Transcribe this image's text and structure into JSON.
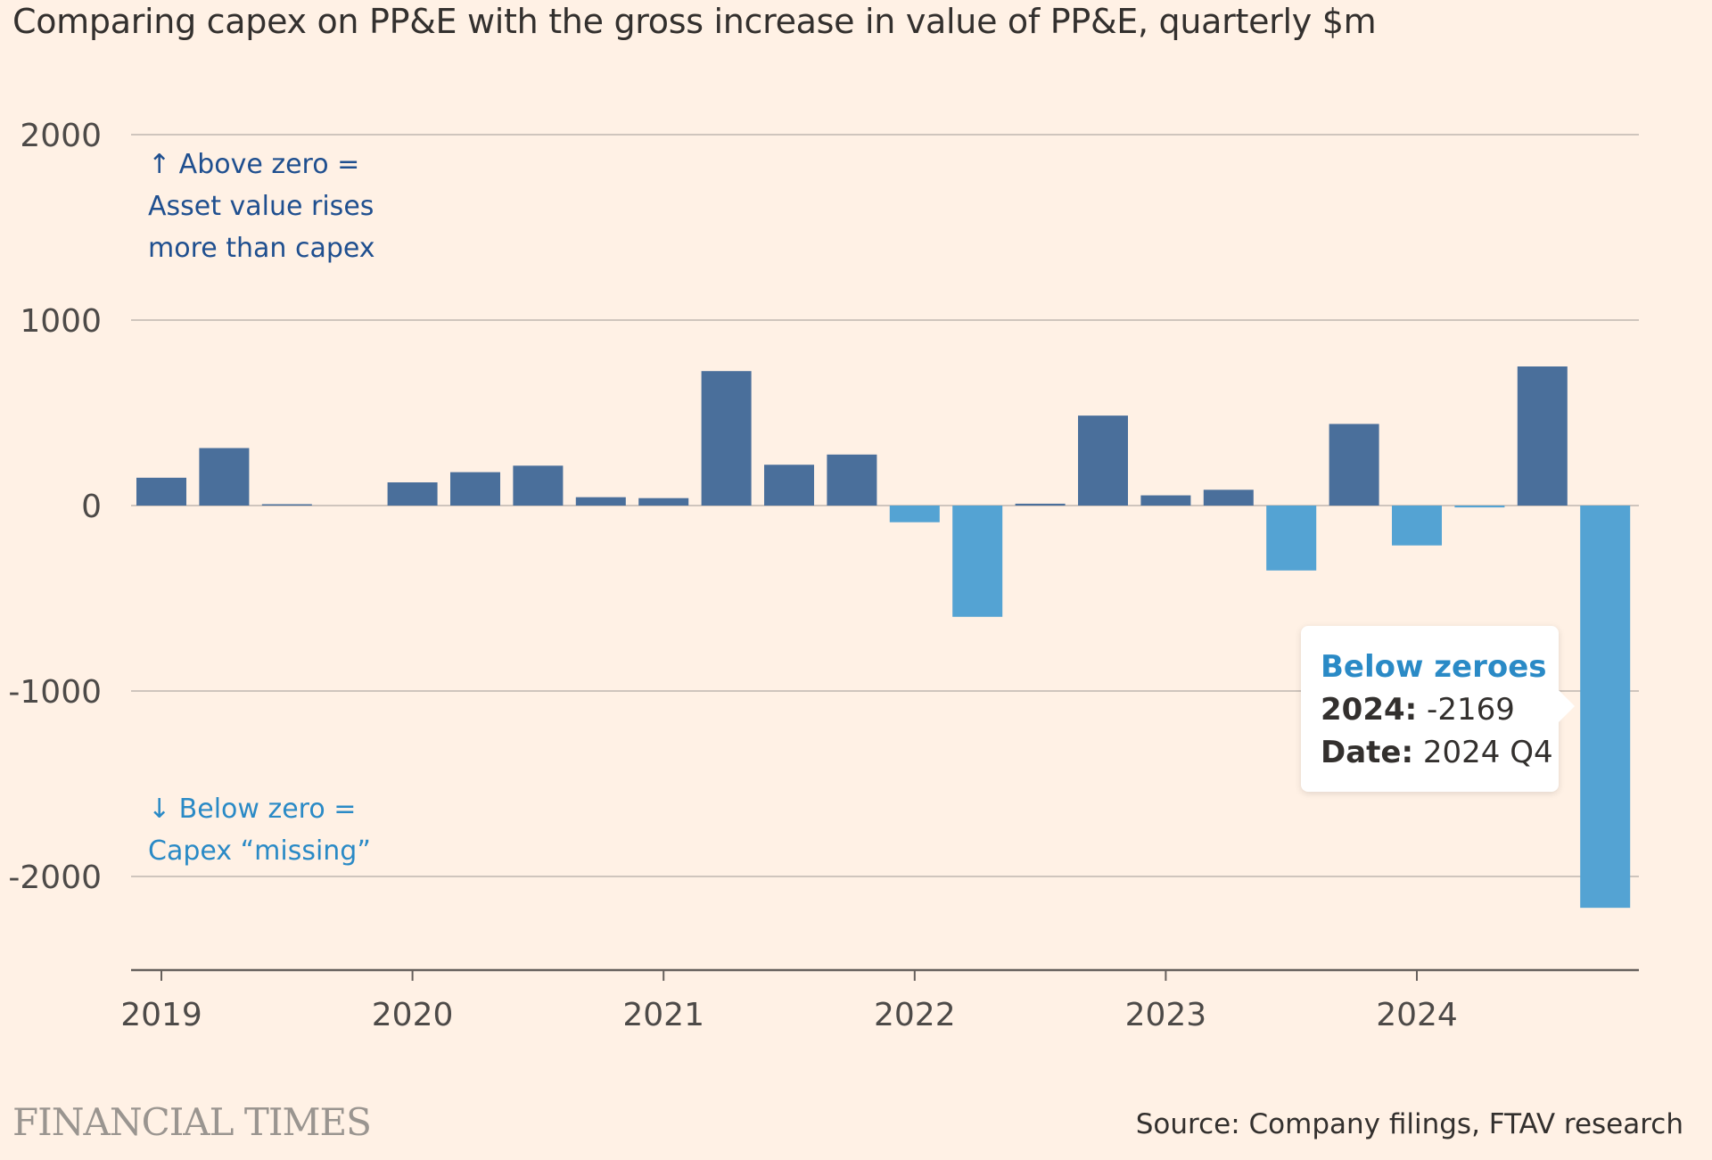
{
  "title": "Comparing capex on PP&E with the gross increase in value of PP&E, quarterly $m",
  "colors": {
    "background": "#fff1e5",
    "positive": "#4a6f9b",
    "negative": "#54a3d3",
    "grid": "#cfc5bd",
    "axis": "#66605c",
    "tooltip_head": "#2a8ac6"
  },
  "annotations": {
    "above": [
      "↑ Above zero =",
      "Asset value rises",
      "more than capex"
    ],
    "below": [
      "↓ Below zero =",
      "Capex “missing”"
    ]
  },
  "tooltip": {
    "heading": "Below zeroes",
    "row1_label": "2024:",
    "row1_value": "-2169",
    "row2_label": "Date:",
    "row2_value": "2024 Q4"
  },
  "footer": {
    "brand": "FINANCIAL TIMES",
    "source": "Source: Company filings, FTAV research"
  },
  "chart_data": {
    "type": "bar",
    "title": "Comparing capex on PP&E with the gross increase in value of PP&E, quarterly $m",
    "xlabel": "",
    "ylabel": "",
    "ylim": [
      -2500,
      2000
    ],
    "yticks": [
      2000,
      1000,
      0,
      -1000,
      -2000
    ],
    "ytick_labels": [
      "2000",
      "1000",
      "0",
      "-1000",
      "-2000"
    ],
    "xtick_labels": [
      "2019",
      "2020",
      "2021",
      "2022",
      "2023",
      "2024"
    ],
    "grid": true,
    "categories": [
      "2019 Q1",
      "2019 Q2",
      "2019 Q3",
      "2019 Q4",
      "2020 Q1",
      "2020 Q2",
      "2020 Q3",
      "2020 Q4",
      "2021 Q1",
      "2021 Q2",
      "2021 Q3",
      "2021 Q4",
      "2022 Q1",
      "2022 Q2",
      "2022 Q3",
      "2022 Q4",
      "2023 Q1",
      "2023 Q2",
      "2023 Q3",
      "2023 Q4",
      "2024 Q1",
      "2024 Q2",
      "2024 Q3",
      "2024 Q4"
    ],
    "values": [
      150,
      310,
      5,
      0,
      125,
      180,
      215,
      45,
      40,
      725,
      220,
      275,
      -90,
      -600,
      10,
      485,
      55,
      85,
      -350,
      440,
      -215,
      -10,
      750,
      -2169
    ],
    "series_names": [
      "Above zero",
      "Below zero"
    ]
  }
}
